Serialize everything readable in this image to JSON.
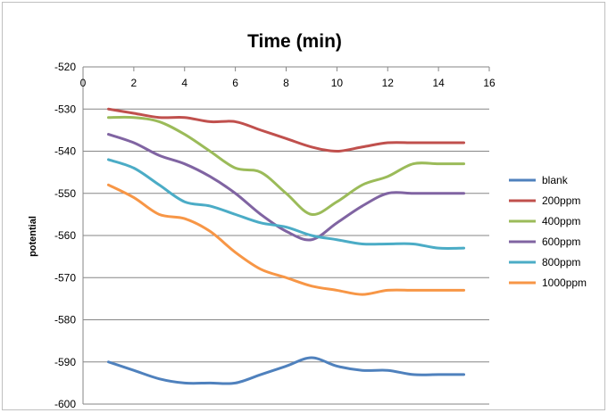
{
  "chart_data": {
    "type": "line",
    "title": "Time (min)",
    "xlabel": "",
    "ylabel": "potential",
    "xlim": [
      0,
      16
    ],
    "ylim": [
      -600,
      -520
    ],
    "x_ticks": [
      "0",
      "2",
      "4",
      "6",
      "8",
      "10",
      "12",
      "14",
      "16"
    ],
    "y_ticks": [
      "-520",
      "-530",
      "-540",
      "-550",
      "-560",
      "-570",
      "-580",
      "-590",
      "-600"
    ],
    "x_axis_position": "top",
    "grid": "horizontal",
    "legend_position": "right",
    "x": [
      1,
      2,
      3,
      4,
      5,
      6,
      7,
      8,
      9,
      10,
      11,
      12,
      13,
      14,
      15
    ],
    "series": [
      {
        "name": "blank",
        "color": "#4f81bd",
        "values": [
          -590,
          -592,
          -594,
          -595,
          -595,
          -595,
          -593,
          -591,
          -589,
          -591,
          -592,
          -592,
          -593,
          -593,
          -593
        ]
      },
      {
        "name": "200ppm",
        "color": "#c0504d",
        "values": [
          -530,
          -531,
          -532,
          -532,
          -533,
          -533,
          -535,
          -537,
          -539,
          -540,
          -539,
          -538,
          -538,
          -538,
          -538
        ]
      },
      {
        "name": "400ppm",
        "color": "#9bbb59",
        "values": [
          -532,
          -532,
          -533,
          -536,
          -540,
          -544,
          -545,
          -550,
          -555,
          -552,
          -548,
          -546,
          -543,
          -543,
          -543
        ]
      },
      {
        "name": "600ppm",
        "color": "#8064a2",
        "values": [
          -536,
          -538,
          -541,
          -543,
          -546,
          -550,
          -555,
          -559,
          -561,
          -557,
          -553,
          -550,
          -550,
          -550,
          -550
        ]
      },
      {
        "name": "800ppm",
        "color": "#4bacc6",
        "values": [
          -542,
          -544,
          -548,
          -552,
          -553,
          -555,
          -557,
          -558,
          -560,
          -561,
          -562,
          -562,
          -562,
          -563,
          -563
        ]
      },
      {
        "name": "1000ppm",
        "color": "#f79646",
        "values": [
          -548,
          -551,
          -555,
          -556,
          -559,
          -564,
          -568,
          -570,
          -572,
          -573,
          -574,
          -573,
          -573,
          -573,
          -573
        ]
      }
    ]
  }
}
